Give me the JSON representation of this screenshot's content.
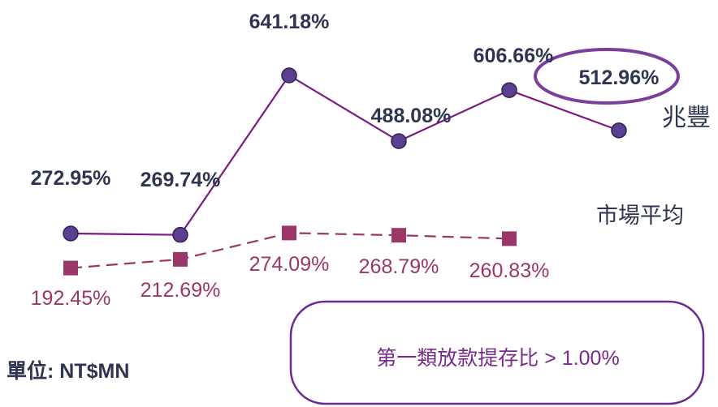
{
  "chart_data": {
    "type": "line",
    "series": [
      {
        "name": "兆豐",
        "color": "#7b1a84",
        "marker_color": "#5b3f91",
        "values": [
          272.95,
          269.74,
          641.18,
          488.08,
          606.66,
          512.96
        ],
        "value_labels": [
          "272.95%",
          "269.74%",
          "641.18%",
          "488.08%",
          "606.66%",
          "512.96%"
        ]
      },
      {
        "name": "市場平均",
        "color": "#9b3768",
        "marker_color": "#9b3768",
        "dashed": true,
        "values": [
          192.45,
          212.69,
          274.09,
          268.79,
          260.83,
          null
        ],
        "value_labels": [
          "192.45%",
          "212.69%",
          "274.09%",
          "268.79%",
          "260.83%",
          null
        ]
      }
    ],
    "unit_note": "單位: NT$MN",
    "callout": "第一類放款提存比 > 1.00%"
  }
}
